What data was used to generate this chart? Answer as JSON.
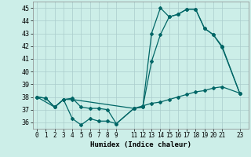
{
  "xlabel": "Humidex (Indice chaleur)",
  "bg_color": "#cceee8",
  "grid_color": "#aacccc",
  "line_color": "#006666",
  "xlim": [
    -0.5,
    24
  ],
  "ylim": [
    35.5,
    45.5
  ],
  "xticks": [
    0,
    1,
    2,
    3,
    4,
    5,
    6,
    7,
    8,
    9,
    11,
    12,
    13,
    14,
    15,
    16,
    17,
    18,
    19,
    20,
    21,
    23
  ],
  "yticks": [
    36,
    37,
    38,
    39,
    40,
    41,
    42,
    43,
    44,
    45
  ],
  "line1_x": [
    0,
    1,
    2,
    3,
    4,
    11,
    12,
    13,
    14,
    15,
    16,
    17,
    18,
    19,
    20,
    21,
    23
  ],
  "line1_y": [
    38.0,
    37.9,
    37.2,
    37.8,
    37.8,
    37.1,
    37.2,
    43.0,
    45.0,
    44.3,
    44.5,
    44.9,
    44.9,
    43.4,
    42.9,
    41.9,
    38.3
  ],
  "line2_x": [
    0,
    1,
    2,
    3,
    4,
    5,
    6,
    7,
    8,
    9,
    11,
    12,
    13,
    14,
    15,
    16,
    17,
    18,
    19,
    20,
    21,
    23
  ],
  "line2_y": [
    38.0,
    37.9,
    37.2,
    37.8,
    37.9,
    37.2,
    37.1,
    37.1,
    37.0,
    35.9,
    37.1,
    37.3,
    37.5,
    37.6,
    37.8,
    38.0,
    38.2,
    38.4,
    38.5,
    38.7,
    38.8,
    38.3
  ],
  "line3_x": [
    0,
    2,
    3,
    4,
    5,
    6,
    7,
    8,
    9,
    11,
    12,
    13,
    14,
    15,
    16,
    17,
    18,
    19,
    20,
    21,
    23
  ],
  "line3_y": [
    38.0,
    37.2,
    37.8,
    36.3,
    35.8,
    36.3,
    36.1,
    36.1,
    35.9,
    37.1,
    37.2,
    40.8,
    42.9,
    44.3,
    44.5,
    44.9,
    44.9,
    43.4,
    42.9,
    42.0,
    38.3
  ]
}
